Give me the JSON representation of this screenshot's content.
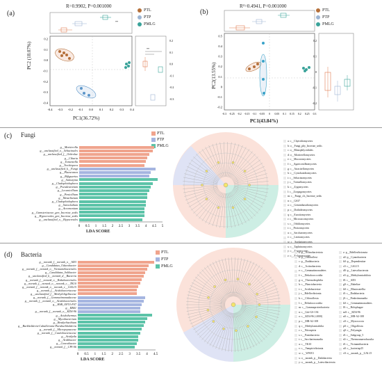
{
  "panel_a": {
    "label": "(a)",
    "stat": "R=0.9902, P=0.001000",
    "xlabel": "PC1(36.72%)",
    "ylabel": "PC2 (18.07%)",
    "xticks": [
      "-0.4",
      "-0.3",
      "-0.2",
      "-0.1",
      "0.0",
      "0.1",
      "0.2",
      "0.3",
      "0.4"
    ],
    "yticks": [
      "0.2",
      "0.1",
      "0.0",
      "-0.1",
      "-0.2",
      "-0.3",
      "-0.4"
    ],
    "right_box_ticks": [
      "0.2",
      "0.1",
      "0.0",
      "-0.1",
      "-0.2",
      "-0.3"
    ],
    "sig": "**"
  },
  "panel_b": {
    "label": "(b)",
    "stat": "R²=0.4941, P=0.001000",
    "xlabel": "PC1(43.84%)",
    "ylabel": "PC2(13.55%)",
    "xticks": [
      "-0.3",
      "-0.25",
      "-0.2",
      "-0.15",
      "-0.1",
      "-0.05",
      "0",
      "0.05",
      "0.1",
      "0.15",
      "0.2",
      "0.25",
      "0.3"
    ],
    "yticks": [
      "0.5",
      "0.4",
      "0.3",
      "0.2",
      "0.1",
      "0",
      "-0.1",
      "-0.2"
    ],
    "right_box_ticks": [
      "0.2",
      "0.1",
      "0",
      "-0.1",
      "-0.2"
    ]
  },
  "legend": [
    {
      "name": "PTL",
      "color": "#b5703a"
    },
    {
      "name": "PTP",
      "color": "#9db5d3"
    },
    {
      "name": "PMLG",
      "color": "#3aa39a"
    }
  ],
  "panel_c": {
    "label": "(c)",
    "title": "Fungi",
    "xlabel": "LDA SCORE",
    "xticks": [
      "0",
      "0.5",
      "1",
      "1.5",
      "2",
      "2.5",
      "3",
      "3.5",
      "4",
      "4.5",
      "5"
    ],
    "legend": [
      {
        "name": "PTL",
        "color": "#f0a48d"
      },
      {
        "name": "PTP",
        "color": "#a5b5e0"
      },
      {
        "name": "PMLG",
        "color": "#5cc3a8"
      }
    ],
    "bars": [
      {
        "label": "g__Mortierella",
        "value": 4.5,
        "group": "PTL"
      },
      {
        "label": "g__unclassified_o__Sebacinales",
        "value": 4.4,
        "group": "PTL"
      },
      {
        "label": "g__unclassified_f__Ochrolae",
        "value": 4.2,
        "group": "PTL"
      },
      {
        "label": "g__Cibaria",
        "value": 4.1,
        "group": "PTL"
      },
      {
        "label": "g__Tomentella",
        "value": 4.0,
        "group": "PTL"
      },
      {
        "label": "g__Trechispora",
        "value": 3.9,
        "group": "PTL"
      },
      {
        "label": "g__unclassified_k__Fungi",
        "value": 4.6,
        "group": "PTP"
      },
      {
        "label": "g__Plaeuranea",
        "value": 4.3,
        "group": "PTP"
      },
      {
        "label": "g__Bifiguarius",
        "value": 4.2,
        "group": "PTP"
      },
      {
        "label": "g__Saitozyma",
        "value": 4.7,
        "group": "PMLG"
      },
      {
        "label": "g__Cladophialophora",
        "value": 4.4,
        "group": "PMLG"
      },
      {
        "label": "g__Pseudeurotium",
        "value": 4.3,
        "group": "PMLG"
      },
      {
        "label": "g__Lecanicillium",
        "value": 4.2,
        "group": "PMLG"
      },
      {
        "label": "g__Penicillium",
        "value": 4.1,
        "group": "PMLG"
      },
      {
        "label": "g__Metarhizium",
        "value": 4.1,
        "group": "PMLG"
      },
      {
        "label": "g__Cladophialophora",
        "value": 4.0,
        "group": "PMLG"
      },
      {
        "label": "g__Sarocladium",
        "value": 4.0,
        "group": "PMLG"
      },
      {
        "label": "g__Acremonium",
        "value": 3.9,
        "group": "PMLG"
      },
      {
        "label": "g__Gamsteriaceae_gen_Incertae_sedis",
        "value": 3.9,
        "group": "PMLG"
      },
      {
        "label": "g__Hypocreales_gen_Incertae_sedis",
        "value": 3.9,
        "group": "PMLG"
      },
      {
        "label": "g__unclassified_o__Hypocreales",
        "value": 3.8,
        "group": "PMLG"
      }
    ],
    "taxa": [
      "a: c__Chytridiomycetes",
      "b: o__Fungi_phy_Incertae_sedis",
      "c: o__Rhizophlyctidales",
      "d: o__Mortierellomycetes",
      "e: c__Mucoromycetes",
      "f: c__Agaricostilbomycetes",
      "g: c__Atractiellomycetes",
      "h: c__Cystobasidiomycetes",
      "i: c__Sebacinomycetes",
      "j: c__Tremellomycetes",
      "k: c__Zygomycetes",
      "l: c__Zoopagomycetes",
      "m: c__Fungi_cls_Incertae_sedis",
      "n: c__GS37",
      "o: c__Geminibasidiomycetes",
      "p: c__Dothideomycetes",
      "q: c__Eurotiomycetes",
      "r: c__Microascomycetes",
      "s: c__Orbiliomycetes",
      "t: c__Pezizomycetes",
      "u: c__Saccharomycetes",
      "v: c__Leotiomycetes",
      "w: c__Sordariomycetes",
      "x: c__Taphrinomycetes",
      "y: c__Zygomycetes",
      "z: c__Xylonomycetes"
    ]
  },
  "panel_d": {
    "label": "(d)",
    "title": "Bacteria",
    "xlabel": "LDA SCORE",
    "xticks": [
      "0",
      "0.5",
      "1",
      "1.5",
      "2",
      "2.5",
      "3",
      "3.5",
      "4",
      "4.5"
    ],
    "legend": [
      {
        "name": "PTL",
        "color": "#f0a48d"
      },
      {
        "name": "PTP",
        "color": "#a5b5e0"
      },
      {
        "name": "PMLG",
        "color": "#5cc3a8"
      }
    ],
    "bars": [
      {
        "label": "g__norank_f__norank_o__AD3",
        "value": 4.4,
        "group": "PTL"
      },
      {
        "label": "g__Candidatus_Udaeobacter",
        "value": 4.1,
        "group": "PTL"
      },
      {
        "label": "g__norank_f__norank_o__Vicinamibacterales",
        "value": 4.0,
        "group": "PTL"
      },
      {
        "label": "g__Candidatus_Solibacter",
        "value": 3.9,
        "group": "PTL"
      },
      {
        "label": "g__unclassified_k__norank_d__Bacteria",
        "value": 3.8,
        "group": "PTL"
      },
      {
        "label": "g__norank_f__norank_o__Rokubacteriales",
        "value": 3.7,
        "group": "PTL"
      },
      {
        "label": "g__norank_f__norank_o__norank_c__TK10",
        "value": 3.6,
        "group": "PTL"
      },
      {
        "label": "g__norank_f__norank_o__norank_c__GAL15",
        "value": 3.5,
        "group": "PTL"
      },
      {
        "label": "g__norank_f__Acidobacteriaceae",
        "value": 3.4,
        "group": "PTL"
      },
      {
        "label": "g__unclassified_f__Methyloligellaceae",
        "value": 3.4,
        "group": "PTL"
      },
      {
        "label": "g__norank_f__Gemmatimonadaceae",
        "value": 3.9,
        "group": "PTP"
      },
      {
        "label": "g__norank_f__norank_o__Acidobacteriales",
        "value": 3.8,
        "group": "PTP"
      },
      {
        "label": "g__HSB_OF53-F07",
        "value": 3.7,
        "group": "PTP"
      },
      {
        "label": "g__RB41",
        "value": 3.6,
        "group": "PTP"
      },
      {
        "label": "g__norank_f__norank_o__KD4-96",
        "value": 3.6,
        "group": "PTP"
      },
      {
        "label": "g__Acidothermus",
        "value": 4.3,
        "group": "PMLG"
      },
      {
        "label": "g__Mycobacterium",
        "value": 4.0,
        "group": "PMLG"
      },
      {
        "label": "g__Bradyrhizobium",
        "value": 3.9,
        "group": "PMLG"
      },
      {
        "label": "g__Burkholderia-Caballeronia-Paraburkholderia",
        "value": 3.8,
        "group": "PMLG"
      },
      {
        "label": "g__norank_f__Micropepsaceae",
        "value": 3.7,
        "group": "PMLG"
      },
      {
        "label": "g__norank_f__Caulobacteraceae",
        "value": 3.6,
        "group": "PMLG"
      },
      {
        "label": "g__Acidipila",
        "value": 3.5,
        "group": "PMLG"
      },
      {
        "label": "g__Acidibacter",
        "value": 3.5,
        "group": "PMLG"
      },
      {
        "label": "g__Conexibacter",
        "value": 3.4,
        "group": "PMLG"
      },
      {
        "label": "g__norank_f__CPI-06",
        "value": 3.3,
        "group": "PMLG"
      }
    ],
    "taxa_col1": [
      "a: p__Actinobacteriota",
      "b: p__Chloroflexi",
      "c: p__Dadabacteria",
      "d: c__Actinobacteria",
      "e: c__Gemmatimonadetes",
      "f: c__Dehalococcoidia",
      "g: o__Thermoleophilia",
      "h: c__Planctobacteria",
      "i: c__Acidobacteriae",
      "j: c__Bdellovibrionia",
      "k: c__Chloroflexia",
      "l: c__Dehalococcoidia",
      "m: c__Gammaproteobacteria",
      "n: c__Gitt-GS-136",
      "o: c__KD4-96 (-2000)",
      "p: c__MB-A2-108",
      "q: c__Methylomirabilia",
      "r: c__Nitrospiria",
      "s: c__Pantobacteria",
      "t: c__Saccharimonadia",
      "u: c__TK10",
      "v: c__Vampirivibrionia",
      "w: c__WWE3",
      "x: o__norank_p__Dadabacteria",
      "y: o__norank_p__Latescibacterota"
    ],
    "taxa_col2": [
      "z: p__Bdellovibrionota",
      "a0: p__Cyanobacteria",
      "b0: p__Dependentiae",
      "c0: c__GAL15",
      "d0: p__Latescibacterota",
      "e0: p__Methylomirabilota",
      "f0: c__AD3",
      "g0: c__Babeliae",
      "h0: c__Blastocatellia",
      "i0: c__Dadabacteria",
      "j0: c__Fimbriimonadia",
      "k0: c__Gemmatimonadetes",
      "l0: c__Holophagae",
      "m0: c__KD4-96",
      "n0: c__MB-A2-108",
      "o0: c__Myxococcia",
      "p0: c__Oligoflexia",
      "q0: c__Polyangia",
      "r0: c__Subgroup_5",
      "s0: c__Thermoanaerobaculia",
      "t0: c__Vicinamibacteria",
      "u0: c__bacteriap25",
      "v0: o__norank_p__GAL15"
    ]
  }
}
